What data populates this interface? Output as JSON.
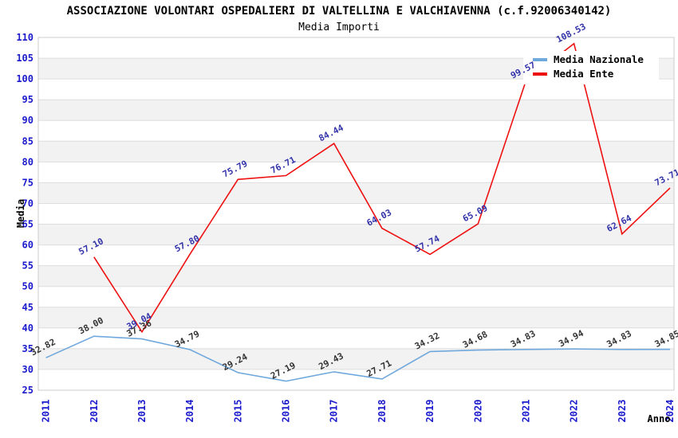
{
  "header": {
    "title": "ASSOCIAZIONE VOLONTARI OSPEDALIERI DI VALTELLINA E VALCHIAVENNA (c.f.92006340142)",
    "subtitle": "Media Importi"
  },
  "colors": {
    "axis_tick_text": "#1A1ACC",
    "axis_title_text": "#000000",
    "grid_line": "#DDDDDD",
    "plot_border": "#CCCCCC",
    "band_fill": "#F2F2F2",
    "band_fill_alt": "#FFFFFF",
    "legend_background": "#FFFFFF",
    "series_nazionale": "#6FA8DC",
    "series_ente": "#EE1111",
    "label_nazionale": "#333333",
    "label_ente": "#3333AA"
  },
  "chart_data": {
    "type": "line",
    "title": "ASSOCIAZIONE VOLONTARI OSPEDALIERI DI VALTELLINA E VALCHIAVENNA (c.f.92006340142)",
    "subtitle": "Media Importi",
    "xlabel": "Anno",
    "ylabel": "Media",
    "ylim": [
      25,
      110
    ],
    "y_ticks": [
      25,
      30,
      35,
      40,
      45,
      50,
      55,
      60,
      65,
      70,
      75,
      80,
      85,
      90,
      95,
      100,
      105,
      110
    ],
    "categories": [
      "2011",
      "2012",
      "2013",
      "2014",
      "2015",
      "2016",
      "2017",
      "2018",
      "2019",
      "2020",
      "2021",
      "2022",
      "2023",
      "2024"
    ],
    "grid": "horizontal",
    "banding": true,
    "legend_position": "top-right",
    "series": [
      {
        "name": "Media Nazionale",
        "values": [
          32.82,
          38.0,
          37.36,
          34.79,
          29.24,
          27.19,
          29.43,
          27.71,
          34.32,
          34.68,
          34.83,
          34.94,
          34.83,
          34.85
        ],
        "labels": [
          "32.82",
          "38.00",
          "37.36",
          "34.79",
          "29.24",
          "27.19",
          "29.43",
          "27.71",
          "34.32",
          "34.68",
          "34.83",
          "34.94",
          "34.83",
          "34.85"
        ]
      },
      {
        "name": "Media Ente",
        "values": [
          null,
          57.1,
          39.04,
          57.8,
          75.79,
          76.71,
          84.44,
          64.03,
          57.74,
          65.09,
          99.57,
          108.53,
          62.64,
          73.71
        ],
        "labels": [
          null,
          "57.10",
          "39.04",
          "57.80",
          "75.79",
          "76.71",
          "84.44",
          "64.03",
          "57.74",
          "65.09",
          "99.57",
          "108.53",
          "62.64",
          "73.71"
        ]
      }
    ]
  }
}
